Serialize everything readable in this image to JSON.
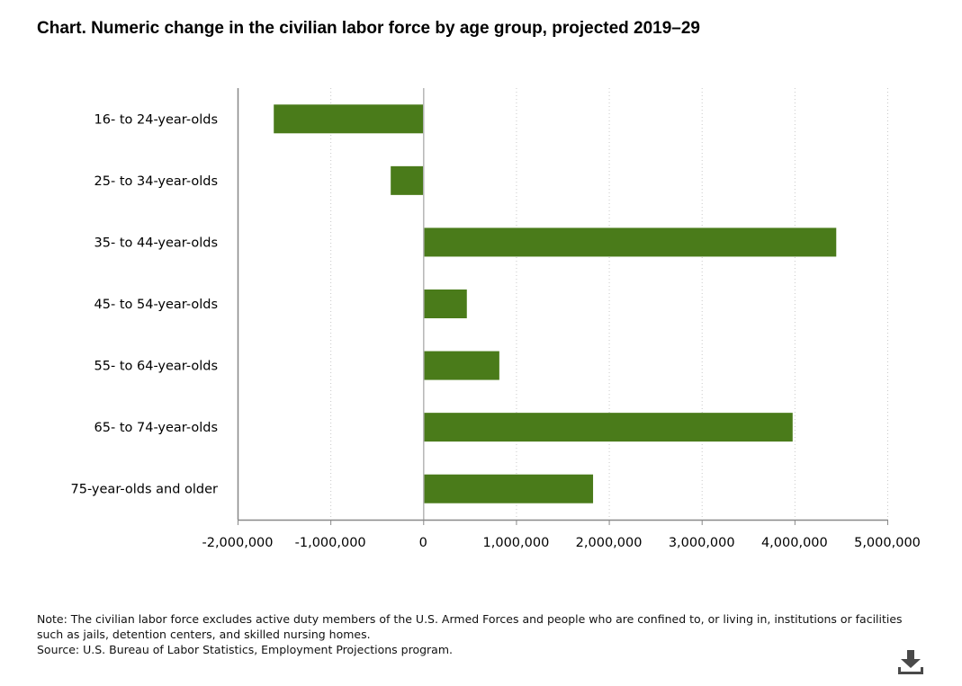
{
  "title": "Chart. Numeric change in the civilian labor force by age group, projected 2019–29",
  "chart_data": {
    "type": "bar",
    "orientation": "horizontal",
    "title": "Chart. Numeric change in the civilian labor force by age group, projected 2019–29",
    "xlabel": "",
    "ylabel": "",
    "categories": [
      "16- to 24-year-olds",
      "25- to 34-year-olds",
      "35- to 44-year-olds",
      "45- to 54-year-olds",
      "55- to 64-year-olds",
      "65- to 74-year-olds",
      "75-year-olds and older"
    ],
    "values": [
      -1610000,
      -350000,
      4450000,
      470000,
      820000,
      3980000,
      1830000
    ],
    "xlim": [
      -2000000,
      5000000
    ],
    "x_ticks": [
      -2000000,
      -1000000,
      0,
      1000000,
      2000000,
      3000000,
      4000000,
      5000000
    ],
    "x_tick_labels": [
      "-2,000,000",
      "-1,000,000",
      "0",
      "1,000,000",
      "2,000,000",
      "3,000,000",
      "4,000,000",
      "5,000,000"
    ],
    "grid": "vertical dotted",
    "legend": "none",
    "bar_color": "#4a7b1a"
  },
  "notes": {
    "note": "Note: The civilian labor force excludes active duty members of the U.S. Armed Forces and people who are confined to, or living in, institutions or facilities such as jails, detention centers, and skilled nursing homes.",
    "source": "Source: U.S. Bureau of Labor Statistics, Employment Projections program."
  },
  "download": {
    "icon": "download-icon"
  }
}
